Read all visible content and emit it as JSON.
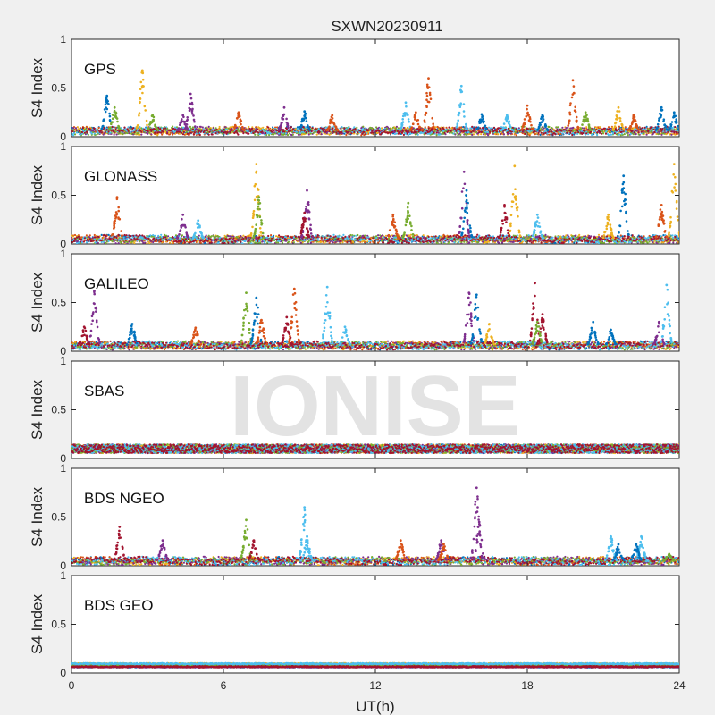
{
  "figure": {
    "title": "SXWN20230911",
    "watermark": "IONISE",
    "xlabel": "UT(h)",
    "background": "#f0f0f0",
    "axes_background": "#ffffff"
  },
  "chart_data": {
    "type": "scatter",
    "title": "SXWN20230911",
    "xlabel": "UT(h)",
    "ylabel": "S4 Index",
    "xlim": [
      0,
      24
    ],
    "ylim": [
      0,
      1
    ],
    "x_ticks": [
      "0",
      "6",
      "12",
      "18",
      "24"
    ],
    "y_ticks": [
      "0",
      "0.5",
      "1"
    ],
    "grid": false,
    "series_colors": [
      "#0072BD",
      "#D95319",
      "#EDB120",
      "#7E2F8E",
      "#77AC30",
      "#4DBEEE",
      "#A2142F"
    ],
    "panels": [
      {
        "label": "GPS",
        "baseline": 0.06,
        "features": [
          [
            1.4,
            0.42,
            0
          ],
          [
            1.7,
            0.3,
            4
          ],
          [
            2.8,
            0.68,
            2
          ],
          [
            3.2,
            0.22,
            4
          ],
          [
            4.7,
            0.44,
            3
          ],
          [
            4.4,
            0.22,
            3
          ],
          [
            6.6,
            0.25,
            1
          ],
          [
            8.4,
            0.3,
            3
          ],
          [
            9.2,
            0.26,
            0
          ],
          [
            10.3,
            0.22,
            1
          ],
          [
            13.2,
            0.35,
            5
          ],
          [
            13.6,
            0.25,
            1
          ],
          [
            14.1,
            0.6,
            1
          ],
          [
            15.4,
            0.52,
            5
          ],
          [
            16.2,
            0.23,
            0
          ],
          [
            17.2,
            0.22,
            5
          ],
          [
            18.0,
            0.32,
            1
          ],
          [
            18.6,
            0.22,
            0
          ],
          [
            19.8,
            0.58,
            1
          ],
          [
            20.3,
            0.25,
            4
          ],
          [
            21.6,
            0.3,
            2
          ],
          [
            22.2,
            0.22,
            1
          ],
          [
            23.3,
            0.3,
            0
          ],
          [
            23.8,
            0.25,
            0
          ]
        ]
      },
      {
        "label": "GLONASS",
        "baseline": 0.05,
        "features": [
          [
            1.8,
            0.48,
            1
          ],
          [
            4.4,
            0.3,
            3
          ],
          [
            5.0,
            0.24,
            5
          ],
          [
            7.3,
            0.82,
            2
          ],
          [
            7.4,
            0.48,
            4
          ],
          [
            9.3,
            0.55,
            3
          ],
          [
            9.2,
            0.32,
            6
          ],
          [
            12.7,
            0.3,
            1
          ],
          [
            13.3,
            0.42,
            4
          ],
          [
            15.5,
            0.74,
            3
          ],
          [
            15.6,
            0.55,
            0
          ],
          [
            17.5,
            0.8,
            2
          ],
          [
            17.1,
            0.4,
            6
          ],
          [
            18.4,
            0.3,
            5
          ],
          [
            21.2,
            0.3,
            2
          ],
          [
            21.8,
            0.7,
            0
          ],
          [
            23.3,
            0.4,
            1
          ],
          [
            23.8,
            0.82,
            2
          ]
        ]
      },
      {
        "label": "GALILEO",
        "baseline": 0.06,
        "features": [
          [
            0.9,
            0.62,
            3
          ],
          [
            0.5,
            0.25,
            6
          ],
          [
            2.4,
            0.28,
            0
          ],
          [
            4.9,
            0.24,
            1
          ],
          [
            6.9,
            0.6,
            4
          ],
          [
            7.3,
            0.55,
            0
          ],
          [
            7.5,
            0.32,
            1
          ],
          [
            8.8,
            0.64,
            1
          ],
          [
            8.5,
            0.35,
            6
          ],
          [
            10.1,
            0.66,
            5
          ],
          [
            10.8,
            0.25,
            5
          ],
          [
            15.7,
            0.6,
            3
          ],
          [
            16.0,
            0.58,
            0
          ],
          [
            16.5,
            0.28,
            2
          ],
          [
            18.3,
            0.7,
            6
          ],
          [
            18.6,
            0.38,
            6
          ],
          [
            18.4,
            0.3,
            4
          ],
          [
            20.6,
            0.3,
            0
          ],
          [
            21.3,
            0.22,
            0
          ],
          [
            23.5,
            0.68,
            5
          ],
          [
            23.2,
            0.3,
            3
          ]
        ]
      },
      {
        "label": "SBAS",
        "baseline": 0.1,
        "features": []
      },
      {
        "label": "BDS NGEO",
        "baseline": 0.05,
        "features": [
          [
            1.9,
            0.4,
            6
          ],
          [
            3.6,
            0.26,
            3
          ],
          [
            6.9,
            0.47,
            4
          ],
          [
            7.2,
            0.26,
            6
          ],
          [
            9.2,
            0.6,
            5
          ],
          [
            9.3,
            0.3,
            5
          ],
          [
            13.0,
            0.26,
            1
          ],
          [
            14.6,
            0.26,
            3
          ],
          [
            14.7,
            0.22,
            1
          ],
          [
            16.0,
            0.8,
            3
          ],
          [
            16.1,
            0.45,
            3
          ],
          [
            21.3,
            0.3,
            5
          ],
          [
            21.6,
            0.22,
            0
          ],
          [
            22.5,
            0.3,
            5
          ],
          [
            22.3,
            0.22,
            0
          ],
          [
            23.6,
            0.12,
            4
          ]
        ]
      },
      {
        "label": "BDS GEO",
        "baseline": 0.08,
        "features": []
      }
    ]
  }
}
